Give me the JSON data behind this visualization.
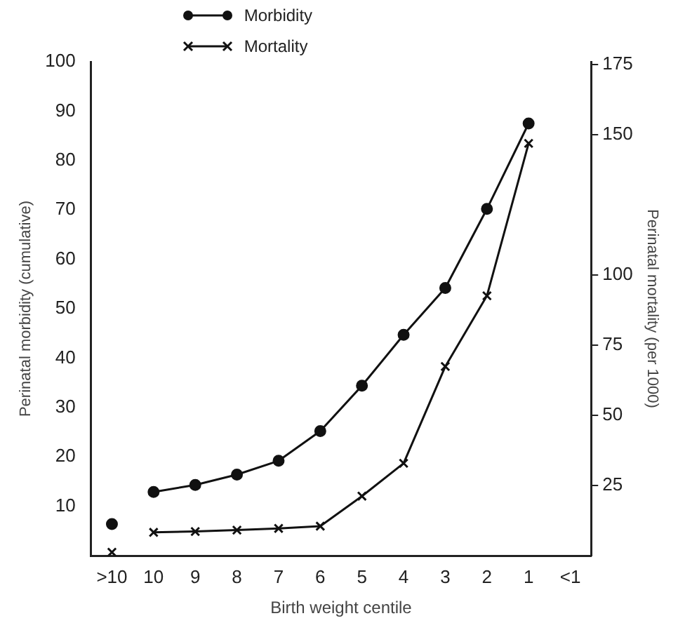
{
  "chart_data": {
    "type": "line",
    "xlabel": "Birth weight centile",
    "ylabel": "Perinatal morbidity (cumulative)",
    "y2label": "Perinatal mortality (per 1000)",
    "categories": [
      ">10",
      "10",
      "9",
      "8",
      "7",
      "6",
      "5",
      "4",
      "3",
      "2",
      "1",
      "<1"
    ],
    "series": [
      {
        "name": "Morbidity",
        "color": "#111111",
        "marker": "circle",
        "values": [
          null,
          12.9,
          14.3,
          16.4,
          19.2,
          25.2,
          34.4,
          44.7,
          54.2,
          70.2,
          87.5,
          null
        ]
      },
      {
        "name": "Mortality",
        "color": "#111111",
        "marker": "cross",
        "axis": "y2",
        "values": [
          null,
          8.3,
          8.6,
          9.1,
          9.7,
          10.5,
          21.2,
          32.9,
          67.4,
          92.6,
          146.9,
          null
        ]
      },
      {
        "type": "scatter",
        "color": "#111111",
        "marker": "circle",
        "x": [
          ">10"
        ],
        "values": [
          6.4
        ]
      },
      {
        "type": "scatter",
        "color": "#111111",
        "marker": "cross",
        "axis": "y2",
        "x": [
          ">10"
        ],
        "values": [
          1.2
        ]
      }
    ],
    "ylim": [
      0,
      100
    ],
    "yticks": [
      10,
      20,
      30,
      40,
      50,
      60,
      70,
      80,
      90,
      100
    ],
    "y2lim": [
      0,
      176
    ],
    "y2ticks": [
      25,
      50,
      75,
      100,
      150,
      175
    ],
    "grid": false,
    "legend": "top left",
    "line_style": "solid"
  }
}
